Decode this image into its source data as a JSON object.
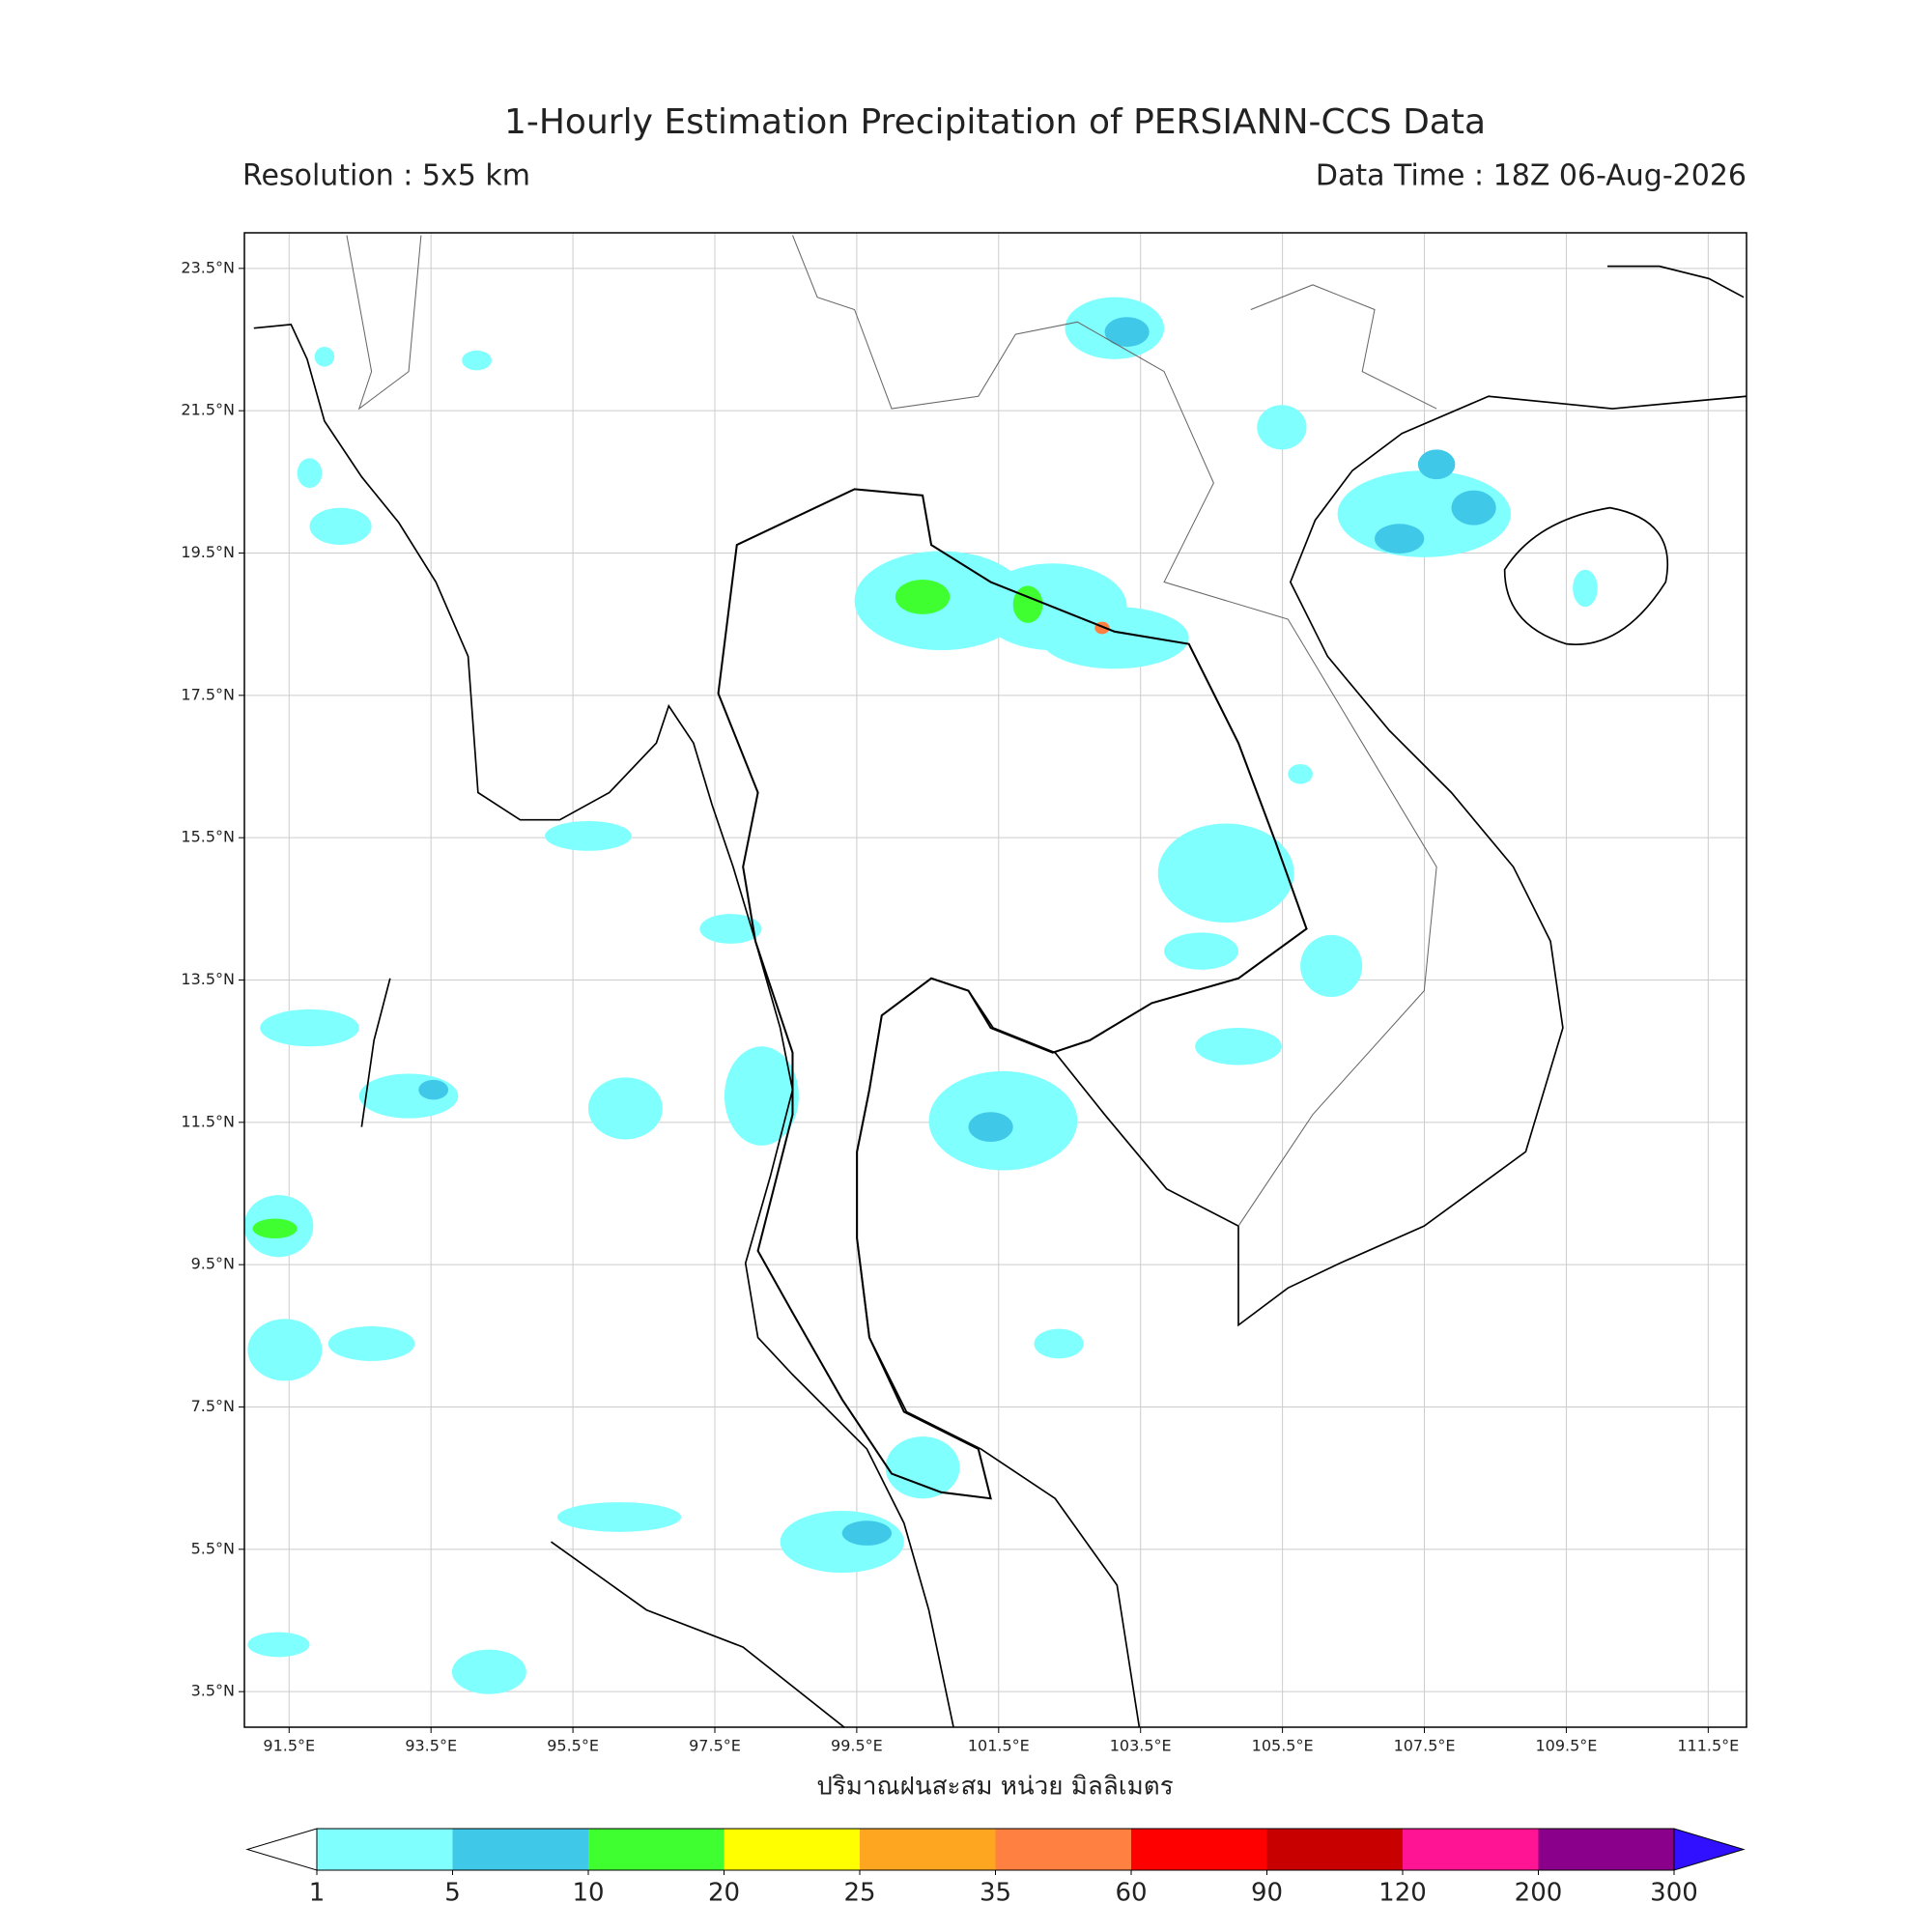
{
  "title": "1-Hourly Estimation Precipitation of PERSIANN-CCS Data",
  "resolution": "Resolution : 5x5 km",
  "data_time": "Data Time : 18Z 06-Aug-2026",
  "map": {
    "xlim": [
      90.87,
      112.04
    ],
    "ylim": [
      3.0,
      24.0
    ],
    "grid": true,
    "xticks": [
      {
        "value": 91.5,
        "label": "91.5°E"
      },
      {
        "value": 93.5,
        "label": "93.5°E"
      },
      {
        "value": 95.5,
        "label": "95.5°E"
      },
      {
        "value": 97.5,
        "label": "97.5°E"
      },
      {
        "value": 99.5,
        "label": "99.5°E"
      },
      {
        "value": 101.5,
        "label": "101.5°E"
      },
      {
        "value": 103.5,
        "label": "103.5°E"
      },
      {
        "value": 105.5,
        "label": "105.5°E"
      },
      {
        "value": 107.5,
        "label": "107.5°E"
      },
      {
        "value": 109.5,
        "label": "109.5°E"
      },
      {
        "value": 111.5,
        "label": "111.5°E"
      }
    ],
    "yticks": [
      {
        "value": 23.5,
        "label": "23.5°N"
      },
      {
        "value": 21.5,
        "label": "21.5°N"
      },
      {
        "value": 19.5,
        "label": "19.5°N"
      },
      {
        "value": 17.5,
        "label": "17.5°N"
      },
      {
        "value": 15.5,
        "label": "15.5°N"
      },
      {
        "value": 13.5,
        "label": "13.5°N"
      },
      {
        "value": 11.5,
        "label": "11.5°N"
      },
      {
        "value": 9.5,
        "label": "9.5°N"
      },
      {
        "value": 7.5,
        "label": "7.5°N"
      },
      {
        "value": 5.5,
        "label": "5.5°N"
      },
      {
        "value": 3.5,
        "label": "3.5°N"
      }
    ]
  },
  "xlabel": "ปริมาณฝนสะสม หน่วย มิลลิเมตร",
  "colorbar": {
    "levels": [
      1,
      5,
      10,
      20,
      25,
      35,
      60,
      90,
      120,
      200,
      300
    ],
    "colors": [
      "#80ffff",
      "#40c8e8",
      "#40ff30",
      "#ffff00",
      "#ffa620",
      "#ff8040",
      "#ff0000",
      "#c80000",
      "#ff1493",
      "#8b008b"
    ],
    "under_color": "#ffffff",
    "over_color": "#3010ff"
  }
}
